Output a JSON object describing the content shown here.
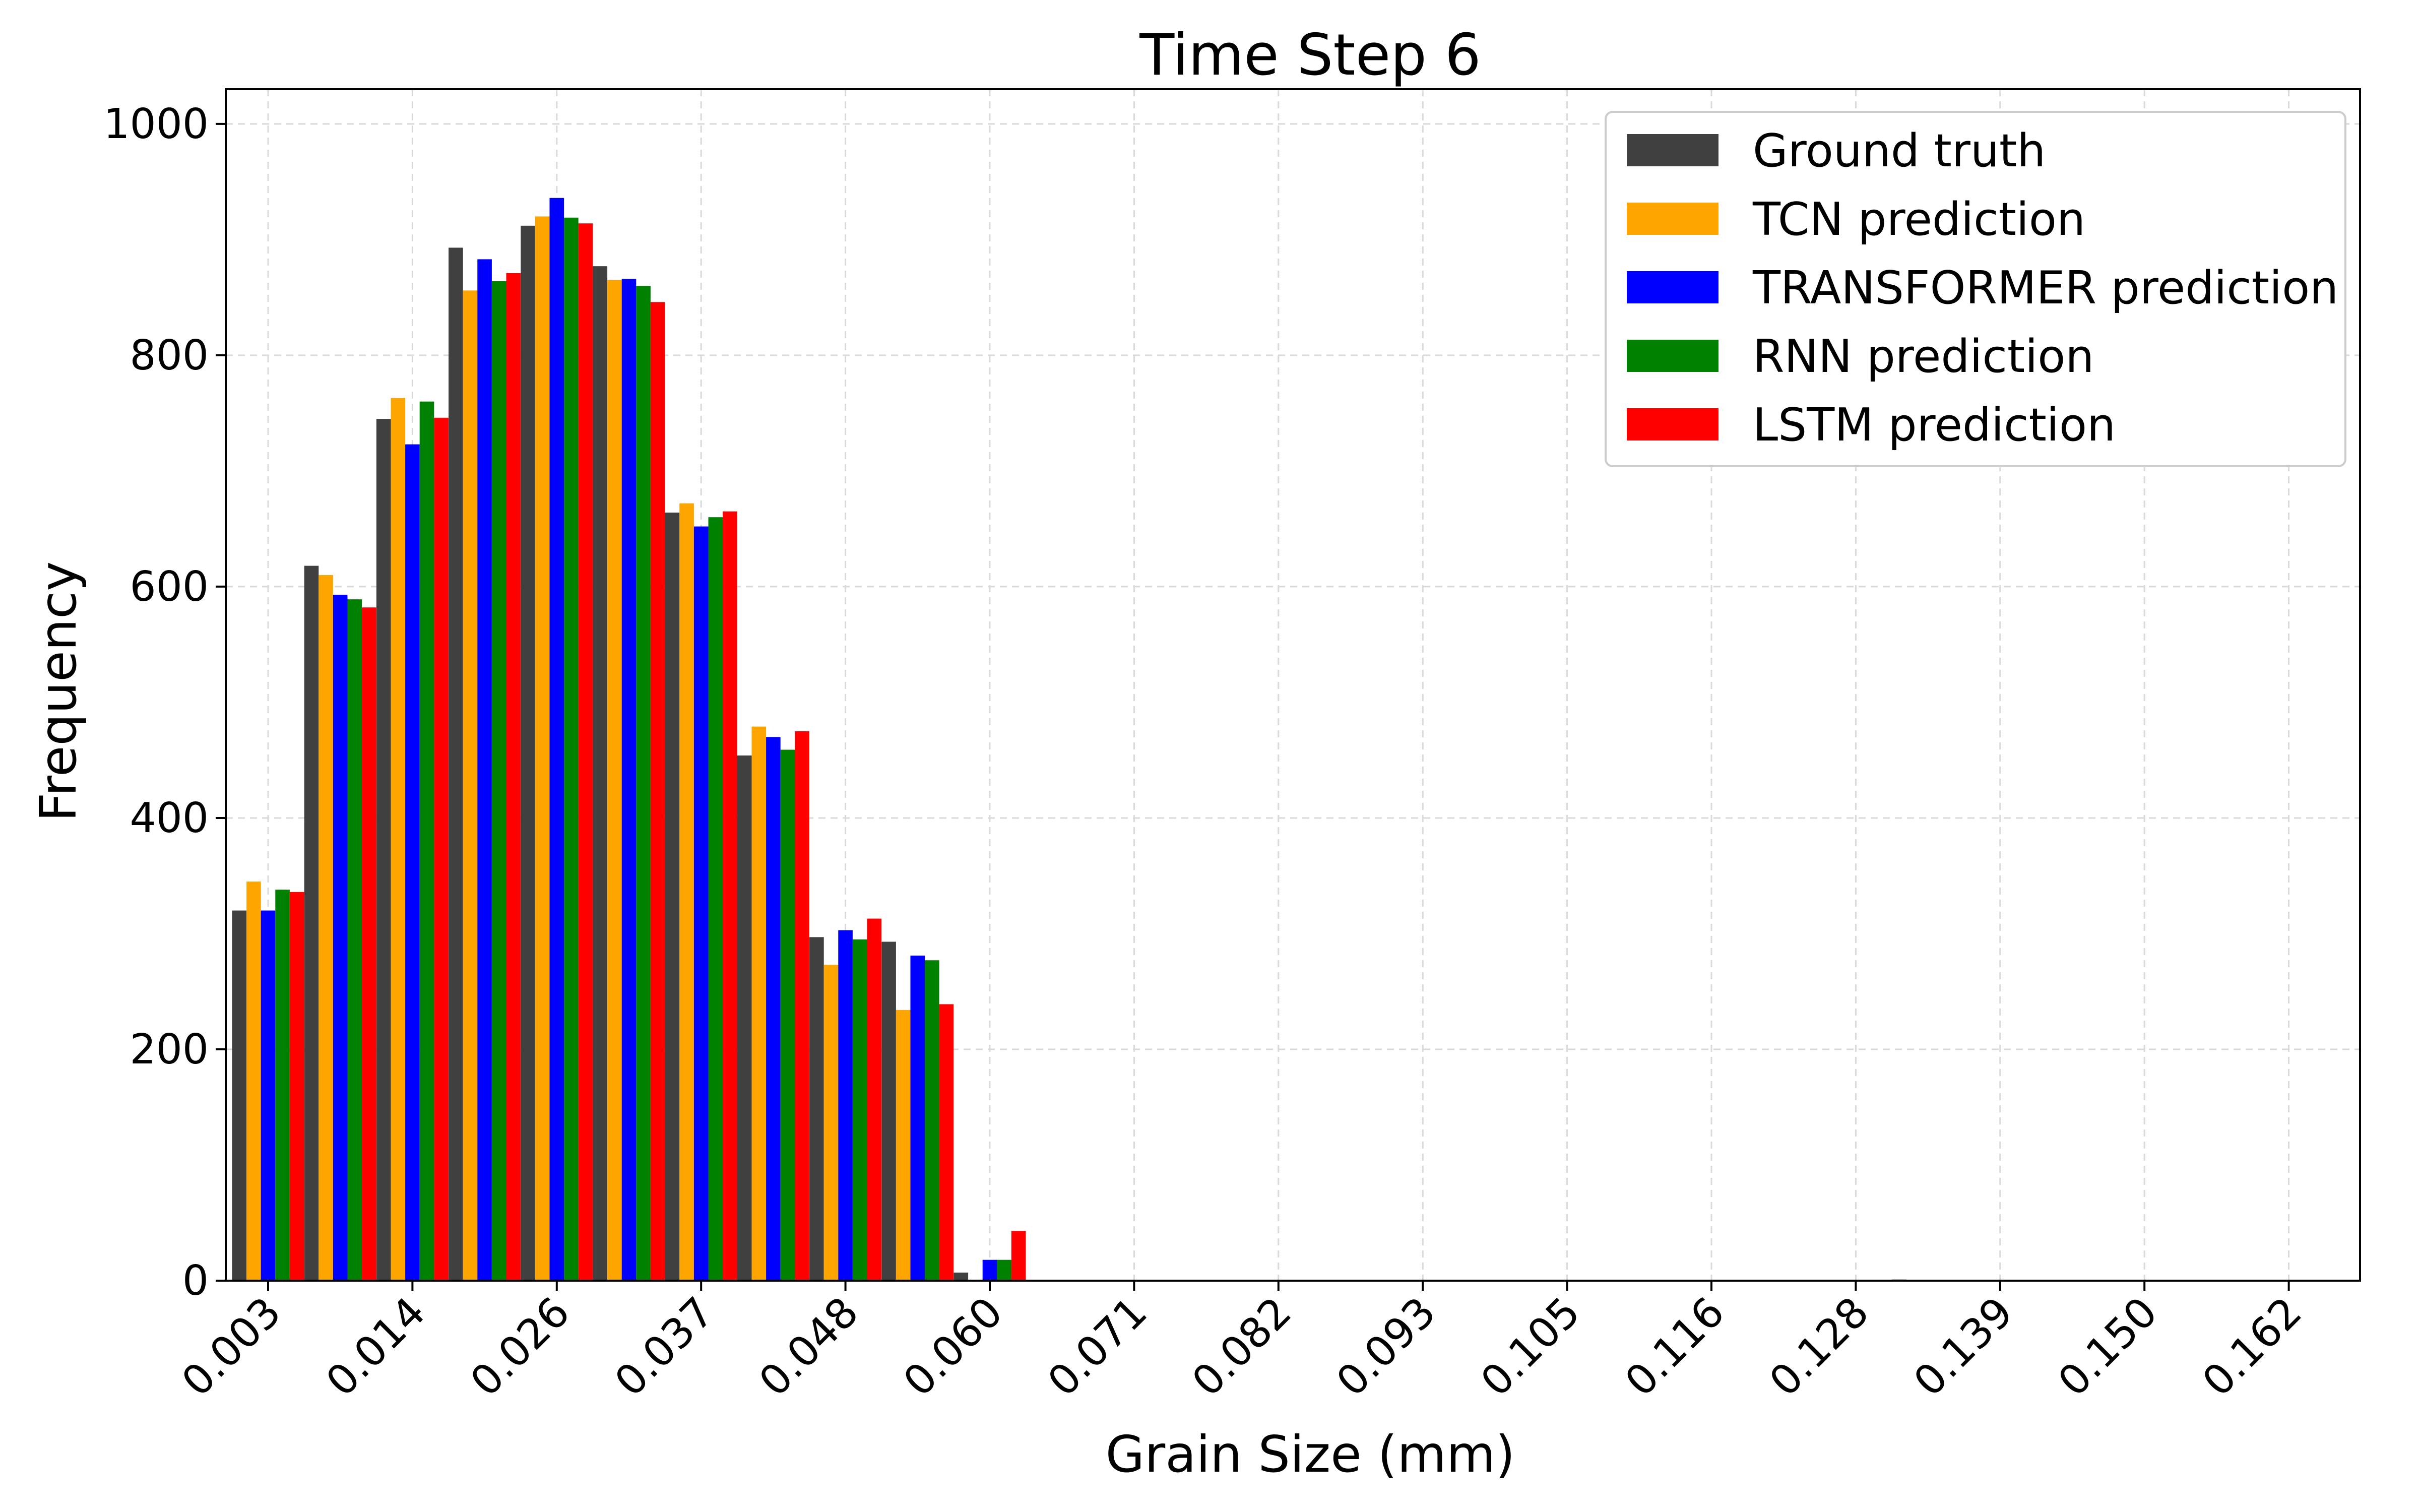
{
  "chart_data": {
    "type": "bar",
    "title": "Time Step 6",
    "xlabel": "Grain Size (mm)",
    "ylabel": "Frequency",
    "ylim": [
      0,
      1030
    ],
    "yticks": [
      "0",
      "200",
      "400",
      "600",
      "800",
      "1000"
    ],
    "ytick_values": [
      0,
      200,
      400,
      600,
      800,
      1000
    ],
    "xticks": [
      "0.003",
      "0.014",
      "0.026",
      "0.037",
      "0.048",
      "0.060",
      "0.071",
      "0.082",
      "0.093",
      "0.105",
      "0.116",
      "0.128",
      "0.139",
      "0.150",
      "0.162"
    ],
    "categories": [
      "0.003",
      "0.009",
      "0.014",
      "0.020",
      "0.026",
      "0.031",
      "0.037",
      "0.043",
      "0.048",
      "0.054",
      "0.060",
      "0.065",
      "0.071",
      "0.077",
      "0.082",
      "0.088",
      "0.093",
      "0.099",
      "0.105",
      "0.110",
      "0.116",
      "0.122",
      "0.128",
      "0.133",
      "0.139",
      "0.145",
      "0.150",
      "0.156",
      "0.162",
      "0.167"
    ],
    "grid": true,
    "legend_position": "top-right",
    "series": [
      {
        "name": "Ground truth",
        "color": "#404040",
        "values": [
          320,
          618,
          745,
          893,
          912,
          877,
          664,
          454,
          297,
          293,
          7,
          0,
          0,
          0,
          0,
          0,
          0,
          0,
          0,
          0,
          0,
          0,
          0,
          1,
          0,
          0,
          0,
          0,
          0,
          0
        ]
      },
      {
        "name": "TCN prediction",
        "color": "#ffa500",
        "values": [
          345,
          610,
          763,
          856,
          920,
          865,
          672,
          479,
          273,
          234,
          0,
          0,
          0,
          0,
          0,
          0,
          0,
          0,
          0,
          0,
          0,
          0,
          0,
          0,
          0,
          0,
          0,
          0,
          0,
          0
        ]
      },
      {
        "name": "TRANSFORMER prediction",
        "color": "#0000ff",
        "values": [
          320,
          593,
          723,
          883,
          936,
          866,
          652,
          470,
          303,
          281,
          18,
          0,
          0,
          0,
          0,
          0,
          0,
          0,
          0,
          0,
          0,
          0,
          0,
          0,
          0,
          0,
          0,
          0,
          0,
          0
        ]
      },
      {
        "name": "RNN prediction",
        "color": "#008000",
        "values": [
          338,
          589,
          760,
          864,
          919,
          860,
          660,
          459,
          295,
          277,
          18,
          0,
          0,
          0,
          0,
          0,
          0,
          0,
          0,
          0,
          0,
          0,
          0,
          0,
          0,
          0,
          0,
          0,
          0,
          0
        ]
      },
      {
        "name": "LSTM prediction",
        "color": "#ff0000",
        "values": [
          336,
          582,
          746,
          871,
          914,
          846,
          665,
          475,
          313,
          239,
          43,
          0,
          0,
          0,
          0,
          0,
          0,
          0,
          0,
          0,
          0,
          0,
          0,
          0,
          0,
          0,
          0,
          0,
          0,
          0
        ]
      }
    ]
  }
}
